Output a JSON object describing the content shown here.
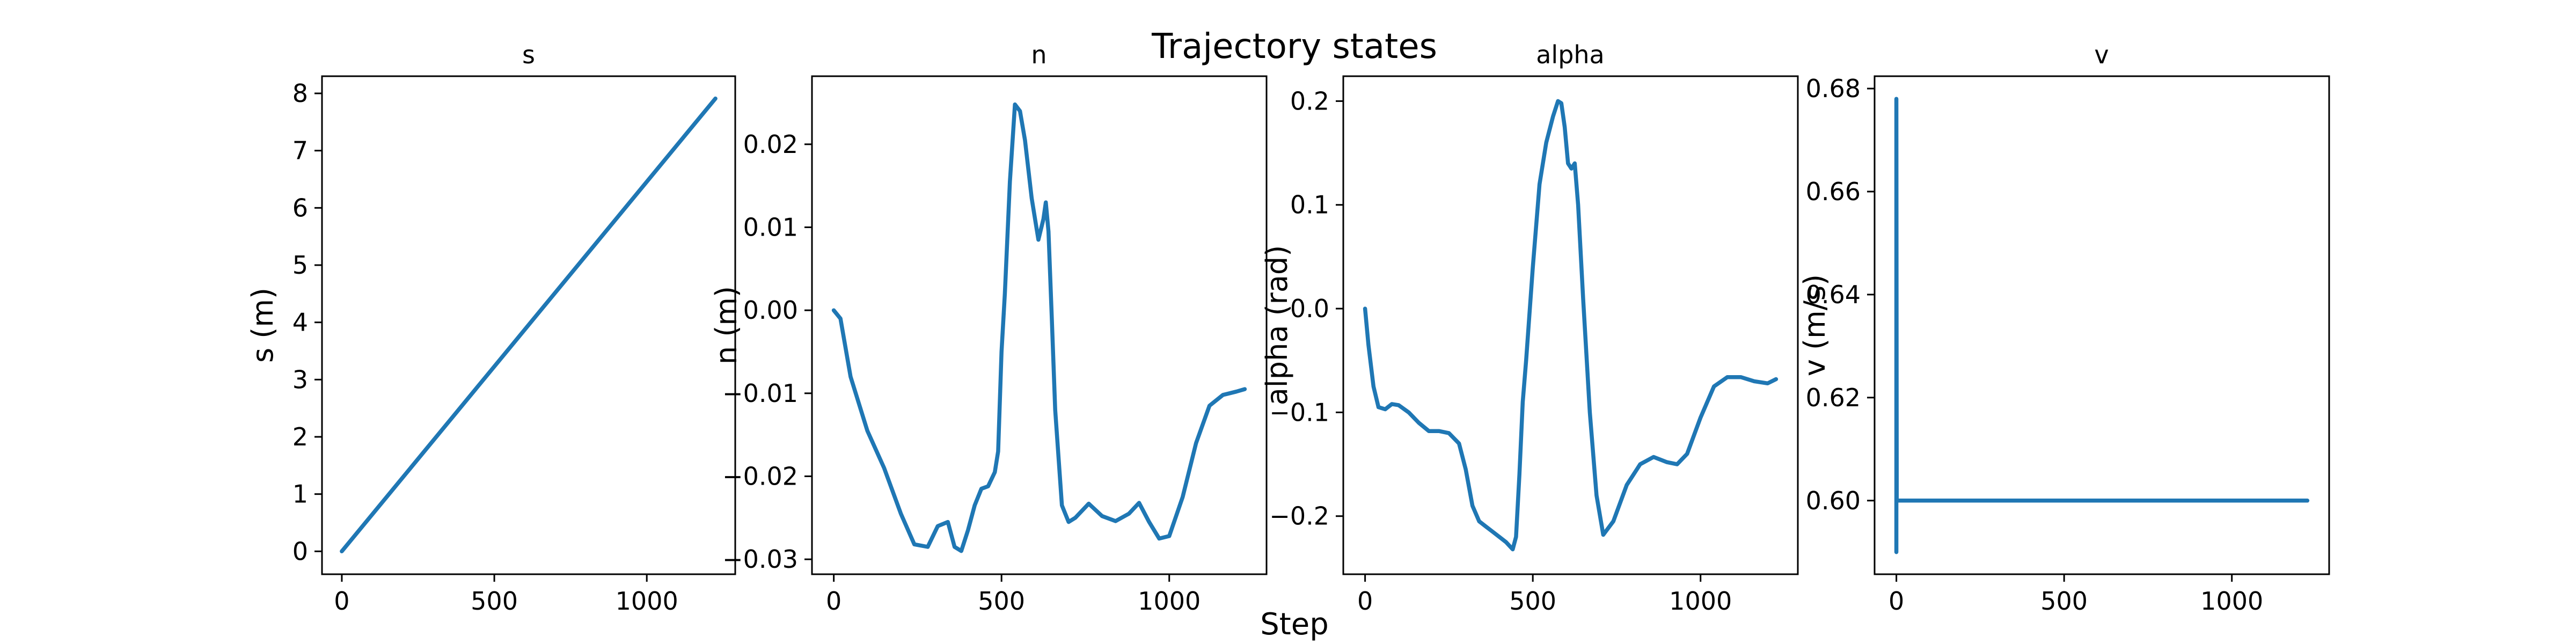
{
  "figure": {
    "suptitle": "Trajectory states",
    "xlabel": "Step",
    "line_color": "#1f77b4"
  },
  "chart_data": [
    {
      "type": "line",
      "title": "s",
      "xlabel": "",
      "ylabel": "s (m)",
      "xlim": [
        -65,
        1290
      ],
      "ylim": [
        -0.4,
        8.3
      ],
      "xticks": [
        {
          "value": 0,
          "label": "0"
        },
        {
          "value": 500,
          "label": "500"
        },
        {
          "value": 1000,
          "label": "1000"
        }
      ],
      "yticks": [
        {
          "value": 0,
          "label": "0"
        },
        {
          "value": 1,
          "label": "1"
        },
        {
          "value": 2,
          "label": "2"
        },
        {
          "value": 3,
          "label": "3"
        },
        {
          "value": 4,
          "label": "4"
        },
        {
          "value": 5,
          "label": "5"
        },
        {
          "value": 6,
          "label": "6"
        },
        {
          "value": 7,
          "label": "7"
        },
        {
          "value": 8,
          "label": "8"
        }
      ],
      "grid": false,
      "series": [
        {
          "x": [
            0,
            1225
          ],
          "y": [
            0,
            7.91
          ]
        }
      ]
    },
    {
      "type": "line",
      "title": "n",
      "xlabel": "",
      "ylabel": "n (m)",
      "xlim": [
        -65,
        1290
      ],
      "ylim": [
        -0.0318,
        0.0282
      ],
      "xticks": [
        {
          "value": 0,
          "label": "0"
        },
        {
          "value": 500,
          "label": "500"
        },
        {
          "value": 1000,
          "label": "1000"
        }
      ],
      "yticks": [
        {
          "value": 0.02,
          "label": "0.02"
        },
        {
          "value": 0.01,
          "label": "0.01"
        },
        {
          "value": 0.0,
          "label": "0.00"
        },
        {
          "value": -0.01,
          "label": "−0.01"
        },
        {
          "value": -0.02,
          "label": "−0.02"
        },
        {
          "value": -0.03,
          "label": "−0.03"
        }
      ],
      "grid": false,
      "series": [
        {
          "x": [
            0,
            20,
            50,
            100,
            150,
            200,
            240,
            280,
            310,
            340,
            360,
            380,
            400,
            420,
            440,
            460,
            480,
            490,
            500,
            510,
            525,
            540,
            555,
            570,
            590,
            610,
            625,
            632,
            640,
            650,
            660,
            680,
            700,
            720,
            760,
            800,
            840,
            880,
            910,
            940,
            970,
            1000,
            1040,
            1080,
            1120,
            1160,
            1200,
            1225
          ],
          "y": [
            0.0,
            -0.001,
            -0.008,
            -0.0145,
            -0.019,
            -0.0245,
            -0.0282,
            -0.0285,
            -0.026,
            -0.0255,
            -0.0285,
            -0.029,
            -0.0265,
            -0.0235,
            -0.0215,
            -0.0212,
            -0.0195,
            -0.017,
            -0.005,
            0.002,
            0.0155,
            0.0248,
            0.024,
            0.0205,
            0.0135,
            0.0085,
            0.011,
            0.013,
            0.0095,
            -0.001,
            -0.012,
            -0.0235,
            -0.0255,
            -0.025,
            -0.0233,
            -0.0248,
            -0.0254,
            -0.0245,
            -0.0232,
            -0.0255,
            -0.0275,
            -0.0272,
            -0.0225,
            -0.016,
            -0.0115,
            -0.0102,
            -0.0098,
            -0.0095
          ]
        }
      ]
    },
    {
      "type": "line",
      "title": "alpha",
      "xlabel": "",
      "ylabel": "alpha (rad)",
      "xlim": [
        -65,
        1290
      ],
      "ylim": [
        -0.256,
        0.224
      ],
      "xticks": [
        {
          "value": 0,
          "label": "0"
        },
        {
          "value": 500,
          "label": "500"
        },
        {
          "value": 1000,
          "label": "1000"
        }
      ],
      "yticks": [
        {
          "value": 0.2,
          "label": "0.2"
        },
        {
          "value": 0.1,
          "label": "0.1"
        },
        {
          "value": 0.0,
          "label": "0.0"
        },
        {
          "value": -0.1,
          "label": "−0.1"
        },
        {
          "value": -0.2,
          "label": "−0.2"
        }
      ],
      "grid": false,
      "series": [
        {
          "x": [
            0,
            10,
            25,
            40,
            60,
            80,
            100,
            130,
            160,
            190,
            220,
            250,
            280,
            300,
            320,
            340,
            360,
            380,
            400,
            420,
            440,
            450,
            460,
            470,
            480,
            500,
            520,
            540,
            560,
            575,
            585,
            595,
            605,
            615,
            625,
            635,
            650,
            670,
            690,
            710,
            740,
            780,
            820,
            860,
            900,
            930,
            960,
            1000,
            1040,
            1080,
            1120,
            1160,
            1200,
            1225
          ],
          "y": [
            0.0,
            -0.035,
            -0.075,
            -0.095,
            -0.097,
            -0.092,
            -0.093,
            -0.1,
            -0.11,
            -0.118,
            -0.118,
            -0.12,
            -0.13,
            -0.155,
            -0.19,
            -0.205,
            -0.21,
            -0.215,
            -0.22,
            -0.225,
            -0.232,
            -0.22,
            -0.16,
            -0.09,
            -0.05,
            0.04,
            0.12,
            0.16,
            0.185,
            0.2,
            0.198,
            0.175,
            0.14,
            0.135,
            0.14,
            0.1,
            0.01,
            -0.1,
            -0.18,
            -0.218,
            -0.205,
            -0.17,
            -0.15,
            -0.143,
            -0.148,
            -0.15,
            -0.14,
            -0.105,
            -0.075,
            -0.066,
            -0.066,
            -0.07,
            -0.072,
            -0.068
          ]
        }
      ]
    },
    {
      "type": "line",
      "title": "v",
      "xlabel": "",
      "ylabel": "v (m/s)",
      "xlim": [
        -65,
        1290
      ],
      "ylim": [
        0.5857,
        0.6824
      ],
      "xticks": [
        {
          "value": 0,
          "label": "0"
        },
        {
          "value": 500,
          "label": "500"
        },
        {
          "value": 1000,
          "label": "1000"
        }
      ],
      "yticks": [
        {
          "value": 0.68,
          "label": "0.68"
        },
        {
          "value": 0.66,
          "label": "0.66"
        },
        {
          "value": 0.64,
          "label": "0.64"
        },
        {
          "value": 0.62,
          "label": "0.62"
        },
        {
          "value": 0.6,
          "label": "0.60"
        }
      ],
      "grid": false,
      "series": [
        {
          "x": [
            0,
            0,
            1,
            2,
            3,
            1225
          ],
          "y": [
            0.59,
            0.678,
            0.6,
            0.6,
            0.6,
            0.6
          ]
        }
      ]
    }
  ]
}
